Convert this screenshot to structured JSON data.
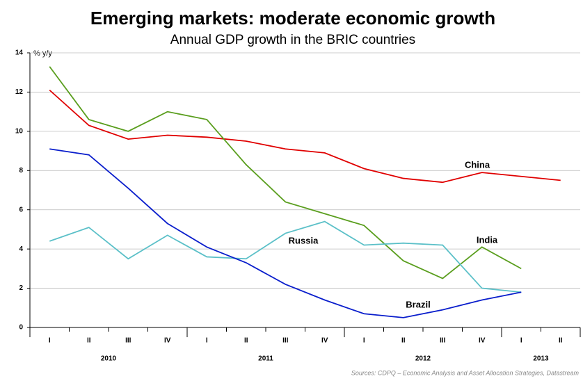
{
  "chart_data": {
    "type": "line",
    "title": "Emerging markets: moderate economic growth",
    "subtitle": "Annual GDP growth in the BRIC countries",
    "y_axis_label": "% y/y",
    "source": "Sources: CDPQ – Economic Analysis and Asset Allocation Strategies, Datastream",
    "categories": [
      "I",
      "II",
      "III",
      "IV",
      "I",
      "II",
      "III",
      "IV",
      "I",
      "II",
      "III",
      "IV",
      "I",
      "II"
    ],
    "years": [
      "2010",
      "2011",
      "2012",
      "2013"
    ],
    "series": [
      {
        "name": "China",
        "color": "#e00000",
        "values": [
          12.1,
          10.3,
          9.6,
          9.8,
          9.7,
          9.5,
          9.1,
          8.9,
          8.1,
          7.6,
          7.4,
          7.9,
          7.7,
          7.5
        ]
      },
      {
        "name": "India",
        "color": "#5a9e1e",
        "values": [
          13.3,
          10.6,
          10.0,
          11.0,
          10.6,
          8.3,
          6.4,
          5.8,
          5.2,
          3.4,
          2.5,
          4.1,
          3.0,
          null
        ]
      },
      {
        "name": "Russia",
        "color": "#5bc0c8",
        "values": [
          4.4,
          5.1,
          3.5,
          4.7,
          3.6,
          3.5,
          4.8,
          5.4,
          4.2,
          4.3,
          4.2,
          2.0,
          1.8,
          null
        ]
      },
      {
        "name": "Brazil",
        "color": "#0a1ecc",
        "values": [
          9.1,
          8.8,
          7.1,
          5.3,
          4.1,
          3.3,
          2.2,
          1.4,
          0.7,
          0.5,
          0.9,
          1.4,
          1.8,
          null
        ]
      }
    ],
    "ylim": [
      0,
      14
    ],
    "yticks": [
      0,
      2,
      4,
      6,
      8,
      10,
      12,
      14
    ],
    "grid": true
  }
}
